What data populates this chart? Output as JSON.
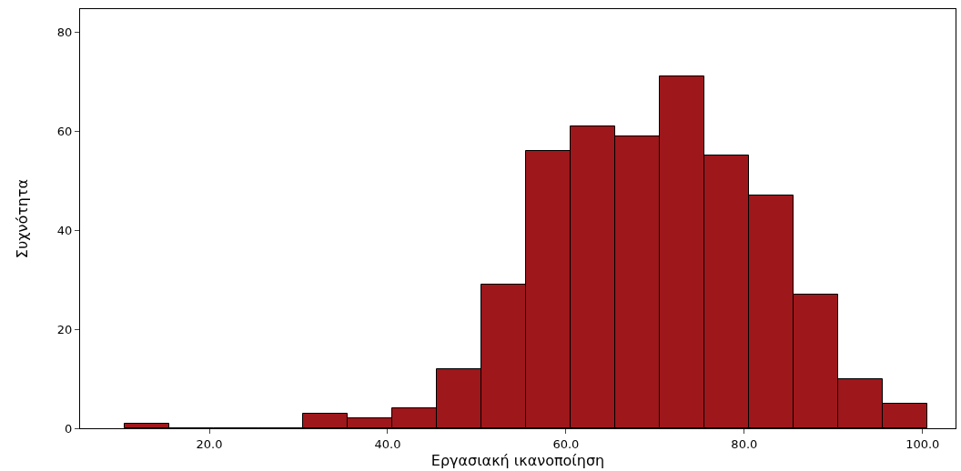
{
  "chart_data": {
    "type": "histogram",
    "xlabel": "Εργασιακή ικανοποίηση",
    "ylabel": "Συχνότητα",
    "bins": [
      10.5,
      15.5,
      20.5,
      25.5,
      30.5,
      35.5,
      40.5,
      45.5,
      50.5,
      55.5,
      60.5,
      65.5,
      70.5,
      75.5,
      80.5,
      85.5,
      90.5,
      95.5,
      100.5
    ],
    "values": [
      1,
      0,
      0,
      0,
      3,
      2,
      4,
      12,
      29,
      56,
      61,
      59,
      71,
      55,
      47,
      27,
      10,
      5
    ],
    "color": "#9e171b",
    "xlim": [
      5.5,
      103.7
    ],
    "xticks": [
      {
        "value": 20,
        "label": "20.0"
      },
      {
        "value": 40,
        "label": "40.0"
      },
      {
        "value": 60,
        "label": "60.0"
      },
      {
        "value": 80,
        "label": "80.0"
      },
      {
        "value": 100,
        "label": "100.0"
      }
    ],
    "ylim": [
      0,
      84.6
    ],
    "yticks": [
      0,
      20,
      40,
      60,
      80
    ],
    "grid": false,
    "legend": false
  }
}
